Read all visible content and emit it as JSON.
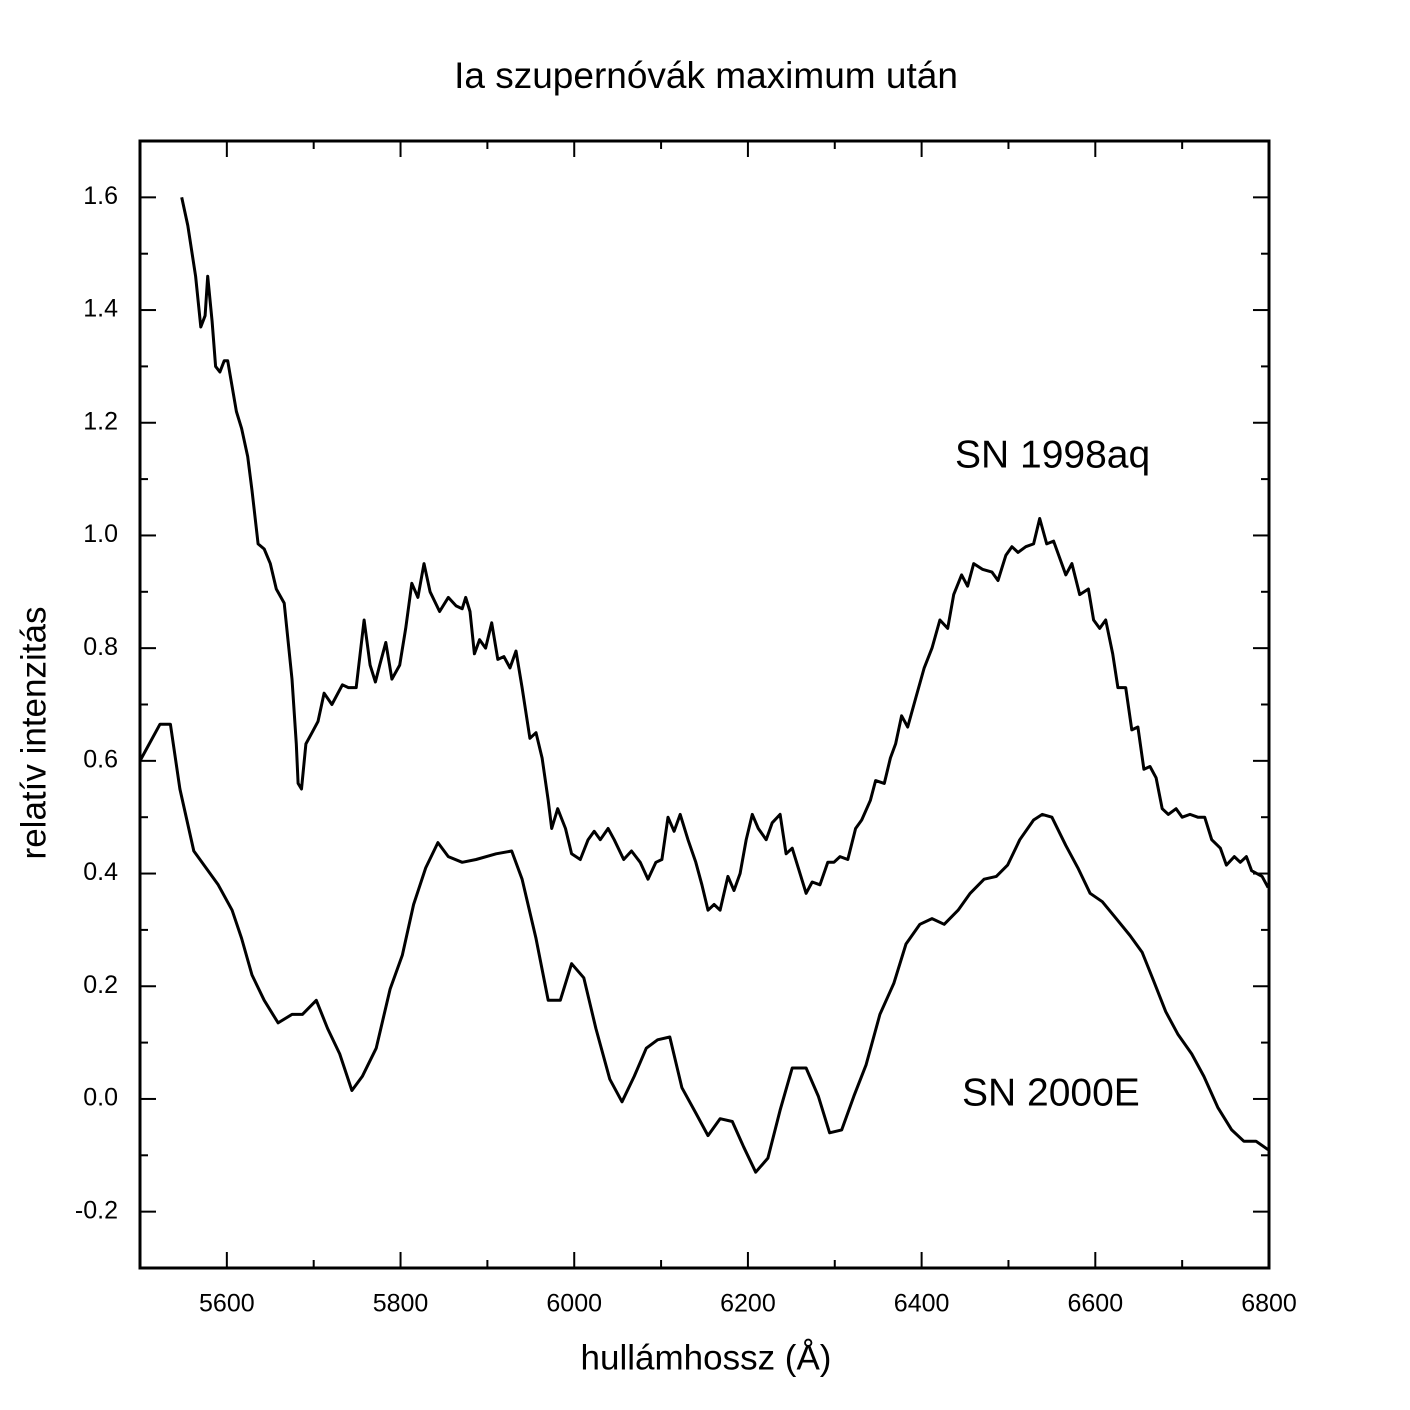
{
  "chart_data": {
    "type": "line",
    "title": "Ia szupernóvák maximum után",
    "x_label": "hullámhossz (Å)",
    "y_label": "relatív intenzitás",
    "annotations": [
      "SN 1998aq",
      "SN 2000E"
    ],
    "xlim": [
      5500,
      6800
    ],
    "ylim": [
      -0.3,
      1.7
    ],
    "xticks": [
      5600,
      5800,
      6000,
      6200,
      6400,
      6600,
      6800
    ],
    "xminorticks": [
      5700,
      5900,
      6100,
      6300,
      6500,
      6700
    ],
    "yticks": [
      -0.2,
      {
        "value": 0,
        "label": "0.0"
      },
      0.2,
      0.4,
      0.6,
      0.8,
      {
        "value": 1,
        "label": "1.0"
      },
      1.2,
      1.4,
      1.6
    ],
    "yminorticks": [
      -0.1,
      0.1,
      0.3,
      0.5,
      0.7,
      0.9,
      1.1,
      1.3,
      1.5
    ],
    "grid": false,
    "series": [
      {
        "name": "SN 1998aq",
        "color": "#000000",
        "x": [
          5548,
          5555,
          5564,
          5570,
          5575,
          5578,
          5583,
          5587,
          5592,
          5597,
          5601,
          5611,
          5617,
          5624,
          5629,
          5636,
          5643,
          5650,
          5657,
          5666,
          5675,
          5680,
          5682,
          5686,
          5691,
          5698,
          5705,
          5712,
          5721,
          5733,
          5740,
          5749,
          5758,
          5765,
          5771,
          5776,
          5783,
          5790,
          5799,
          5806,
          5813,
          5820,
          5827,
          5834,
          5845,
          5855,
          5864,
          5871,
          5875,
          5880,
          5885,
          5891,
          5898,
          5905,
          5912,
          5919,
          5926,
          5933,
          5940,
          5949,
          5956,
          5963,
          5970,
          5974,
          5981,
          5990,
          5997,
          6007,
          6016,
          6023,
          6030,
          6039,
          6046,
          6057,
          6066,
          6076,
          6085,
          6094,
          6101,
          6108,
          6115,
          6122,
          6131,
          6140,
          6147,
          6154,
          6161,
          6168,
          6177,
          6184,
          6191,
          6198,
          6205,
          6212,
          6221,
          6228,
          6237,
          6244,
          6251,
          6258,
          6267,
          6274,
          6283,
          6292,
          6299,
          6306,
          6315,
          6324,
          6331,
          6341,
          6347,
          6357,
          6364,
          6370,
          6377,
          6384,
          6393,
          6403,
          6412,
          6421,
          6430,
          6437,
          6446,
          6453,
          6460,
          6470,
          6481,
          6488,
          6497,
          6504,
          6511,
          6520,
          6529,
          6536,
          6544,
          6552,
          6559,
          6566,
          6573,
          6582,
          6592,
          6598,
          6605,
          6612,
          6620,
          6626,
          6635,
          6642,
          6649,
          6656,
          6663,
          6670,
          6677,
          6684,
          6693,
          6700,
          6709,
          6718,
          6726,
          6734,
          6744,
          6751,
          6760,
          6767,
          6774,
          6780,
          6792,
          6799
        ],
        "values": [
          1.6,
          1.55,
          1.46,
          1.37,
          1.39,
          1.46,
          1.38,
          1.3,
          1.29,
          1.31,
          1.31,
          1.22,
          1.19,
          1.14,
          1.08,
          0.985,
          0.976,
          0.95,
          0.905,
          0.88,
          0.745,
          0.63,
          0.56,
          0.55,
          0.63,
          0.65,
          0.67,
          0.72,
          0.7,
          0.735,
          0.73,
          0.73,
          0.85,
          0.77,
          0.74,
          0.77,
          0.81,
          0.745,
          0.77,
          0.835,
          0.915,
          0.89,
          0.95,
          0.9,
          0.865,
          0.89,
          0.875,
          0.87,
          0.89,
          0.865,
          0.79,
          0.815,
          0.8,
          0.845,
          0.78,
          0.785,
          0.765,
          0.795,
          0.73,
          0.64,
          0.65,
          0.605,
          0.53,
          0.48,
          0.515,
          0.48,
          0.435,
          0.425,
          0.46,
          0.475,
          0.46,
          0.48,
          0.46,
          0.425,
          0.44,
          0.42,
          0.39,
          0.42,
          0.425,
          0.5,
          0.475,
          0.505,
          0.46,
          0.42,
          0.38,
          0.335,
          0.345,
          0.335,
          0.395,
          0.37,
          0.4,
          0.46,
          0.505,
          0.48,
          0.46,
          0.49,
          0.505,
          0.435,
          0.445,
          0.41,
          0.365,
          0.385,
          0.38,
          0.42,
          0.42,
          0.43,
          0.425,
          0.48,
          0.495,
          0.53,
          0.565,
          0.56,
          0.605,
          0.63,
          0.68,
          0.66,
          0.71,
          0.765,
          0.8,
          0.85,
          0.835,
          0.895,
          0.93,
          0.91,
          0.95,
          0.94,
          0.935,
          0.92,
          0.965,
          0.98,
          0.97,
          0.98,
          0.985,
          1.03,
          0.985,
          0.99,
          0.96,
          0.93,
          0.95,
          0.895,
          0.905,
          0.85,
          0.835,
          0.85,
          0.79,
          0.73,
          0.73,
          0.655,
          0.66,
          0.585,
          0.59,
          0.57,
          0.515,
          0.505,
          0.515,
          0.5,
          0.505,
          0.5,
          0.5,
          0.46,
          0.445,
          0.415,
          0.43,
          0.42,
          0.43,
          0.405,
          0.395,
          0.375
        ]
      },
      {
        "name": "SN 2000E",
        "color": "#000000",
        "x": [
          5500,
          5523,
          5535,
          5546,
          5562,
          5576,
          5590,
          5606,
          5617,
          5629,
          5643,
          5659,
          5675,
          5687,
          5703,
          5716,
          5730,
          5744,
          5756,
          5772,
          5788,
          5802,
          5815,
          5829,
          5843,
          5855,
          5871,
          5887,
          5910,
          5928,
          5940,
          5956,
          5970,
          5984,
          5997,
          6011,
          6025,
          6041,
          6055,
          6069,
          6083,
          6096,
          6110,
          6124,
          6140,
          6154,
          6168,
          6182,
          6195,
          6209,
          6223,
          6237,
          6251,
          6267,
          6281,
          6294,
          6308,
          6322,
          6336,
          6352,
          6368,
          6382,
          6398,
          6412,
          6426,
          6442,
          6456,
          6472,
          6486,
          6499,
          6513,
          6529,
          6539,
          6550,
          6566,
          6580,
          6594,
          6608,
          6624,
          6640,
          6654,
          6667,
          6681,
          6695,
          6711,
          6725,
          6741,
          6757,
          6771,
          6785,
          6799
        ],
        "values": [
          0.6,
          0.665,
          0.665,
          0.55,
          0.44,
          0.41,
          0.38,
          0.335,
          0.285,
          0.22,
          0.175,
          0.135,
          0.15,
          0.15,
          0.175,
          0.125,
          0.08,
          0.015,
          0.04,
          0.09,
          0.195,
          0.255,
          0.345,
          0.41,
          0.455,
          0.43,
          0.42,
          0.425,
          0.435,
          0.44,
          0.39,
          0.285,
          0.175,
          0.175,
          0.24,
          0.215,
          0.125,
          0.035,
          -0.005,
          0.04,
          0.09,
          0.105,
          0.11,
          0.02,
          -0.025,
          -0.065,
          -0.035,
          -0.04,
          -0.085,
          -0.13,
          -0.105,
          -0.02,
          0.055,
          0.055,
          0.005,
          -0.06,
          -0.055,
          0.005,
          0.06,
          0.15,
          0.205,
          0.275,
          0.31,
          0.32,
          0.31,
          0.335,
          0.365,
          0.39,
          0.395,
          0.415,
          0.46,
          0.495,
          0.505,
          0.5,
          0.45,
          0.41,
          0.365,
          0.35,
          0.32,
          0.29,
          0.26,
          0.21,
          0.155,
          0.115,
          0.08,
          0.04,
          -0.015,
          -0.055,
          -0.075,
          -0.075,
          -0.09
        ]
      }
    ]
  }
}
